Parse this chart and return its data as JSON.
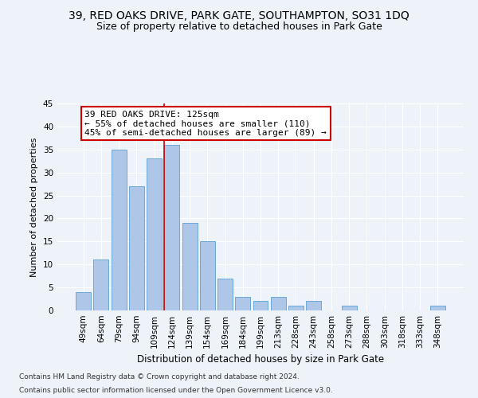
{
  "title": "39, RED OAKS DRIVE, PARK GATE, SOUTHAMPTON, SO31 1DQ",
  "subtitle": "Size of property relative to detached houses in Park Gate",
  "xlabel": "Distribution of detached houses by size in Park Gate",
  "ylabel": "Number of detached properties",
  "categories": [
    "49sqm",
    "64sqm",
    "79sqm",
    "94sqm",
    "109sqm",
    "124sqm",
    "139sqm",
    "154sqm",
    "169sqm",
    "184sqm",
    "199sqm",
    "213sqm",
    "228sqm",
    "243sqm",
    "258sqm",
    "273sqm",
    "288sqm",
    "303sqm",
    "318sqm",
    "333sqm",
    "348sqm"
  ],
  "values": [
    4,
    11,
    35,
    27,
    33,
    36,
    19,
    15,
    7,
    3,
    2,
    3,
    1,
    2,
    0,
    1,
    0,
    0,
    0,
    0,
    1
  ],
  "bar_color": "#aec6e8",
  "bar_edge_color": "#5a9fd4",
  "annotation_title": "39 RED OAKS DRIVE: 125sqm",
  "annotation_line1": "← 55% of detached houses are smaller (110)",
  "annotation_line2": "45% of semi-detached houses are larger (89) →",
  "annotation_box_color": "#ffffff",
  "annotation_box_edge_color": "#cc0000",
  "highlight_line_color": "#cc0000",
  "ylim": [
    0,
    45
  ],
  "yticks": [
    0,
    5,
    10,
    15,
    20,
    25,
    30,
    35,
    40,
    45
  ],
  "footnote1": "Contains HM Land Registry data © Crown copyright and database right 2024.",
  "footnote2": "Contains public sector information licensed under the Open Government Licence v3.0.",
  "background_color": "#eef2f9",
  "plot_background": "#eef2f9",
  "title_fontsize": 10,
  "subtitle_fontsize": 9,
  "xlabel_fontsize": 8.5,
  "ylabel_fontsize": 8,
  "tick_fontsize": 7.5,
  "annotation_fontsize": 8,
  "footnote_fontsize": 6.5
}
